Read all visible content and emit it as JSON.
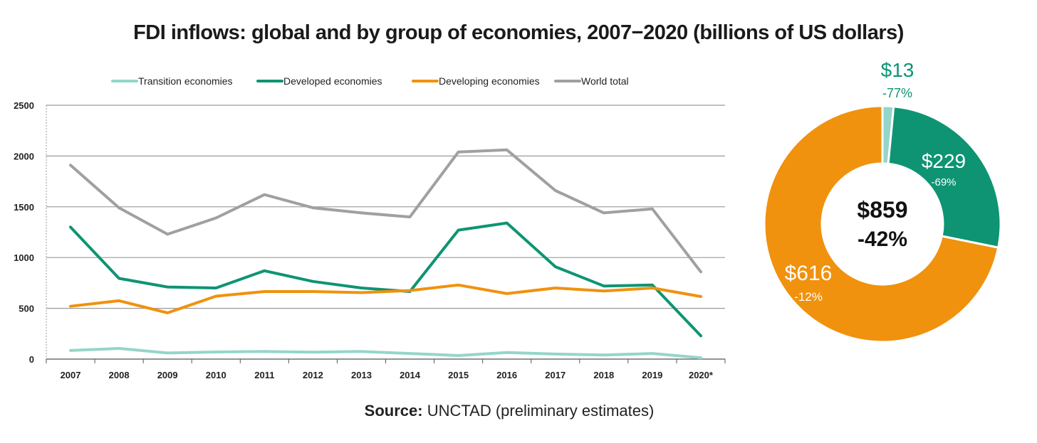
{
  "title": "FDI inflows: global and by group of economies, 2007−2020 (billions of US dollars)",
  "source": {
    "label": "Source:",
    "text": "UNCTAD (preliminary estimates)"
  },
  "colors": {
    "transition": "#95d5ca",
    "developed": "#0e9473",
    "developing": "#f0920e",
    "world": "#a0a0a0",
    "grid": "#9a9a9a",
    "axis_text": "#222222"
  },
  "chart_data": [
    {
      "type": "line",
      "categories": [
        "2007",
        "2008",
        "2009",
        "2010",
        "2011",
        "2012",
        "2013",
        "2014",
        "2015",
        "2016",
        "2017",
        "2018",
        "2019",
        "2020*"
      ],
      "ylim": [
        0,
        2500
      ],
      "yticks": [
        0,
        500,
        1000,
        1500,
        2000,
        2500
      ],
      "grid": true,
      "legend": "top",
      "series": [
        {
          "name": "Transition economies",
          "color": "#95d5ca",
          "values": [
            85,
            105,
            60,
            70,
            75,
            68,
            75,
            55,
            35,
            65,
            50,
            40,
            55,
            13
          ]
        },
        {
          "name": "Developed economies",
          "color": "#0e9473",
          "values": [
            1300,
            795,
            710,
            700,
            870,
            765,
            700,
            665,
            1270,
            1340,
            910,
            720,
            730,
            229
          ]
        },
        {
          "name": "Developing economies",
          "color": "#f0920e",
          "values": [
            520,
            575,
            455,
            620,
            665,
            665,
            655,
            675,
            730,
            645,
            700,
            670,
            700,
            616
          ]
        },
        {
          "name": "World total",
          "color": "#a0a0a0",
          "values": [
            1910,
            1490,
            1230,
            1390,
            1620,
            1490,
            1440,
            1400,
            2040,
            2060,
            1660,
            1440,
            1480,
            859
          ]
        }
      ]
    },
    {
      "type": "pie",
      "center_label": {
        "value": "$859",
        "change": "-42%"
      },
      "slices": [
        {
          "group": "Transition economies",
          "value": 13,
          "label": "$13",
          "change": "-77%",
          "color": "#95d5ca"
        },
        {
          "group": "Developed economies",
          "value": 229,
          "label": "$229",
          "change": "-69%",
          "color": "#0e9473"
        },
        {
          "group": "Developing economies",
          "value": 616,
          "label": "$616",
          "change": "-12%",
          "color": "#f0920e"
        }
      ]
    }
  ]
}
